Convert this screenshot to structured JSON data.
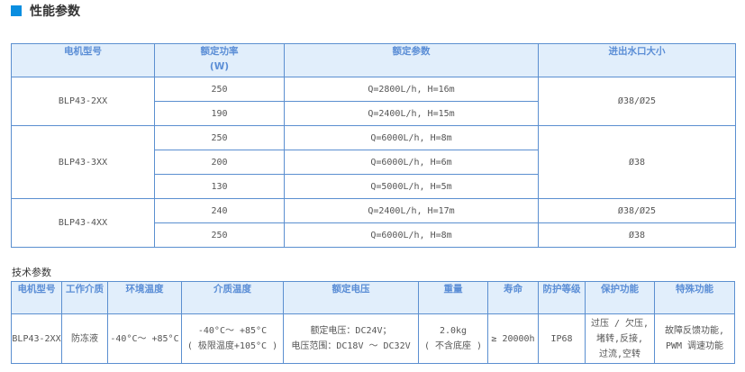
{
  "section_title": "性能参数",
  "accent": "#0a8ee0",
  "perf": {
    "headers": [
      "电机型号",
      "额定功率",
      "(W)",
      "额定参数",
      "进出水口大小"
    ],
    "groups": [
      {
        "model": "BLP43-2XX",
        "rows": [
          {
            "power": "250",
            "param": "Q=2800L/h, H=16m"
          },
          {
            "power": "190",
            "param": "Q=2400L/h, H=15m"
          }
        ],
        "port": "Ø38/Ø25"
      },
      {
        "model": "BLP43-3XX",
        "rows": [
          {
            "power": "250",
            "param": "Q=6000L/h, H=8m"
          },
          {
            "power": "200",
            "param": "Q=6000L/h, H=6m"
          },
          {
            "power": "130",
            "param": "Q=5000L/h, H=5m"
          }
        ],
        "port": "Ø38"
      },
      {
        "model": "BLP43-4XX",
        "rows": [
          {
            "power": "240",
            "param": "Q=2400L/h, H=17m",
            "port": "Ø38/Ø25"
          },
          {
            "power": "250",
            "param": "Q=6000L/h, H=8m",
            "port": "Ø38"
          }
        ]
      }
    ]
  },
  "tech": {
    "title": "技术参数",
    "headers": [
      "电机型号",
      "工作介质",
      "环境温度",
      "介质温度",
      "额定电压",
      "重量",
      "寿命",
      "防护等级",
      "保护功能",
      "特殊功能"
    ],
    "row": {
      "model": "BLP43-2XX",
      "medium": "防冻液",
      "ambient": "-40°C～ +85°C",
      "medium_temp_1": "-40°C～ +85°C",
      "medium_temp_2": "( 极限温度+105°C )",
      "voltage_1": "额定电压：DC24V；",
      "voltage_2": "电压范围：DC18V ～ DC32V",
      "weight_1": "2.0kg",
      "weight_2": "( 不含底座 )",
      "life": "≥ 20000h",
      "ip": "IP68",
      "protection_1": "过压 / 欠压,",
      "protection_2": "堵转,反接,",
      "protection_3": "过流,空转",
      "special_1": "故障反馈功能,",
      "special_2": "PWM 调速功能"
    }
  }
}
